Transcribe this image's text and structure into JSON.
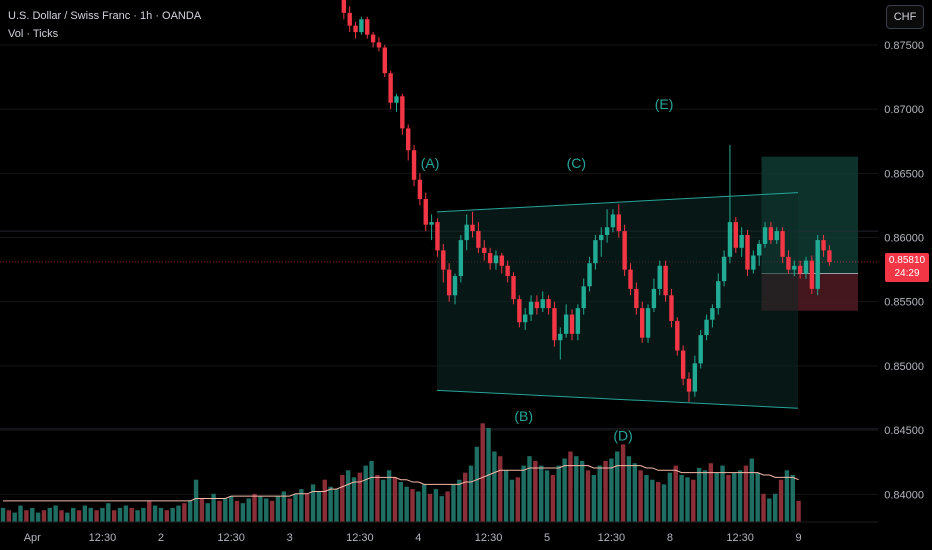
{
  "header": {
    "title": "U.S. Dollar / Swiss Franc · 1h · OANDA",
    "indicator": "Vol · Ticks"
  },
  "currency_button": "CHF",
  "price_tag": {
    "price": "0.85810",
    "countdown": "24:29"
  },
  "colors": {
    "up": "#22ab94",
    "down": "#f23645",
    "volume_up": "#1f6e63",
    "volume_down": "#8a2e38",
    "pattern": "#26a69a",
    "volume_ma": "#f5b8a8",
    "target_zone": "#0f3a33",
    "stop_zone": "#4a1a20"
  },
  "chart_data": {
    "type": "candlestick",
    "symbol": "U.S. Dollar / Swiss Franc",
    "timeframe": "1h",
    "y_ticks": [
      "0.87500",
      "0.87000",
      "0.86500",
      "0.86000",
      "0.85500",
      "0.85000",
      "0.84500",
      "0.84000"
    ],
    "x_ticks": [
      {
        "label": "Apr",
        "bar": 5
      },
      {
        "label": "12:30",
        "bar": 17
      },
      {
        "label": "2",
        "bar": 27
      },
      {
        "label": "12:30",
        "bar": 39
      },
      {
        "label": "3",
        "bar": 49
      },
      {
        "label": "12:30",
        "bar": 61
      },
      {
        "label": "4",
        "bar": 71
      },
      {
        "label": "12:30",
        "bar": 83
      },
      {
        "label": "5",
        "bar": 93
      },
      {
        "label": "12:30",
        "bar": 104
      },
      {
        "label": "8",
        "bar": 114
      },
      {
        "label": "12:30",
        "bar": 126
      },
      {
        "label": "9",
        "bar": 136
      }
    ],
    "ylim": [
      0.838,
      0.8785
    ],
    "candles": [
      [
        0.8795,
        0.88,
        0.8785,
        0.8788
      ],
      [
        0.8788,
        0.879,
        0.877,
        0.8775
      ],
      [
        0.8775,
        0.878,
        0.876,
        0.8765
      ],
      [
        0.8765,
        0.8768,
        0.8755,
        0.876
      ],
      [
        0.876,
        0.8772,
        0.8758,
        0.877
      ],
      [
        0.877,
        0.8772,
        0.8755,
        0.8758
      ],
      [
        0.8758,
        0.876,
        0.8748,
        0.8752
      ],
      [
        0.8752,
        0.8756,
        0.8745,
        0.8748
      ],
      [
        0.8748,
        0.875,
        0.8725,
        0.8728
      ],
      [
        0.8728,
        0.873,
        0.87,
        0.8705
      ],
      [
        0.8705,
        0.8712,
        0.8698,
        0.871
      ],
      [
        0.871,
        0.8712,
        0.868,
        0.8685
      ],
      [
        0.8685,
        0.8688,
        0.866,
        0.8668
      ],
      [
        0.8668,
        0.8672,
        0.864,
        0.8645
      ],
      [
        0.8645,
        0.865,
        0.8625,
        0.863
      ],
      [
        0.863,
        0.8635,
        0.8605,
        0.861
      ],
      [
        0.861,
        0.8618,
        0.8598,
        0.8612
      ],
      [
        0.8612,
        0.8615,
        0.8585,
        0.859
      ],
      [
        0.859,
        0.8595,
        0.8565,
        0.8575
      ],
      [
        0.8575,
        0.858,
        0.855,
        0.8555
      ],
      [
        0.8555,
        0.8572,
        0.8548,
        0.857
      ],
      [
        0.857,
        0.8602,
        0.8565,
        0.8598
      ],
      [
        0.8598,
        0.8618,
        0.859,
        0.861
      ],
      [
        0.861,
        0.862,
        0.86,
        0.8605
      ],
      [
        0.8605,
        0.8612,
        0.8588,
        0.8592
      ],
      [
        0.8592,
        0.8598,
        0.8582,
        0.8588
      ],
      [
        0.8588,
        0.8592,
        0.8575,
        0.858
      ],
      [
        0.858,
        0.859,
        0.8575,
        0.8586
      ],
      [
        0.8586,
        0.8588,
        0.8572,
        0.8578
      ],
      [
        0.8578,
        0.8582,
        0.8565,
        0.857
      ],
      [
        0.857,
        0.8573,
        0.8548,
        0.8552
      ],
      [
        0.8552,
        0.8555,
        0.853,
        0.8534
      ],
      [
        0.8534,
        0.8545,
        0.8528,
        0.854
      ],
      [
        0.854,
        0.8555,
        0.8535,
        0.855
      ],
      [
        0.855,
        0.8555,
        0.854,
        0.8545
      ],
      [
        0.8545,
        0.8558,
        0.8542,
        0.8552
      ],
      [
        0.8552,
        0.8555,
        0.854,
        0.8545
      ],
      [
        0.8545,
        0.855,
        0.8515,
        0.852
      ],
      [
        0.852,
        0.853,
        0.8505,
        0.8525
      ],
      [
        0.8525,
        0.8548,
        0.8522,
        0.854
      ],
      [
        0.854,
        0.8544,
        0.852,
        0.8525
      ],
      [
        0.8525,
        0.8548,
        0.852,
        0.8545
      ],
      [
        0.8545,
        0.8568,
        0.854,
        0.8562
      ],
      [
        0.8562,
        0.8585,
        0.8558,
        0.858
      ],
      [
        0.858,
        0.8602,
        0.8575,
        0.8598
      ],
      [
        0.8598,
        0.8608,
        0.8585,
        0.8602
      ],
      [
        0.8602,
        0.8622,
        0.8596,
        0.8608
      ],
      [
        0.8608,
        0.8622,
        0.8604,
        0.8618
      ],
      [
        0.8618,
        0.8626,
        0.86,
        0.8605
      ],
      [
        0.8605,
        0.861,
        0.857,
        0.8575
      ],
      [
        0.8575,
        0.858,
        0.8555,
        0.856
      ],
      [
        0.856,
        0.8565,
        0.854,
        0.8545
      ],
      [
        0.8545,
        0.855,
        0.8518,
        0.8522
      ],
      [
        0.8522,
        0.8548,
        0.8518,
        0.8545
      ],
      [
        0.8545,
        0.8568,
        0.8542,
        0.856
      ],
      [
        0.856,
        0.8582,
        0.8555,
        0.8578
      ],
      [
        0.8578,
        0.8582,
        0.855,
        0.8555
      ],
      [
        0.8555,
        0.856,
        0.853,
        0.8535
      ],
      [
        0.8535,
        0.8538,
        0.8508,
        0.8512
      ],
      [
        0.8512,
        0.8516,
        0.8485,
        0.849
      ],
      [
        0.849,
        0.8495,
        0.8472,
        0.848
      ],
      [
        0.848,
        0.8508,
        0.8476,
        0.8502
      ],
      [
        0.8502,
        0.8528,
        0.8498,
        0.8524
      ],
      [
        0.8524,
        0.854,
        0.852,
        0.8536
      ],
      [
        0.8536,
        0.8548,
        0.853,
        0.8545
      ],
      [
        0.8545,
        0.8572,
        0.854,
        0.8566
      ],
      [
        0.8566,
        0.859,
        0.8562,
        0.8585
      ],
      [
        0.8585,
        0.8672,
        0.858,
        0.8612
      ],
      [
        0.8612,
        0.8616,
        0.8588,
        0.8592
      ],
      [
        0.8592,
        0.8608,
        0.8585,
        0.8602
      ],
      [
        0.8602,
        0.8606,
        0.857,
        0.8575
      ],
      [
        0.8575,
        0.859,
        0.8572,
        0.8586
      ],
      [
        0.8586,
        0.8598,
        0.8578,
        0.8595
      ],
      [
        0.8595,
        0.8612,
        0.8592,
        0.8608
      ],
      [
        0.8608,
        0.8612,
        0.8595,
        0.8598
      ],
      [
        0.8598,
        0.8608,
        0.8595,
        0.8605
      ],
      [
        0.8605,
        0.8608,
        0.858,
        0.8585
      ],
      [
        0.8585,
        0.859,
        0.8572,
        0.8575
      ],
      [
        0.8575,
        0.8582,
        0.857,
        0.8578
      ],
      [
        0.8578,
        0.8582,
        0.8568,
        0.8572
      ],
      [
        0.8572,
        0.8585,
        0.8568,
        0.8582
      ],
      [
        0.8582,
        0.8586,
        0.8556,
        0.856
      ],
      [
        0.856,
        0.8602,
        0.8555,
        0.8598
      ],
      [
        0.8598,
        0.8602,
        0.8585,
        0.859
      ],
      [
        0.859,
        0.8594,
        0.8578,
        0.8581
      ]
    ],
    "candle_start_bar": 55,
    "volumes": [
      6,
      5,
      4,
      7,
      5,
      6,
      4,
      5,
      6,
      7,
      5,
      4,
      6,
      5,
      7,
      6,
      5,
      6,
      8,
      5,
      6,
      7,
      6,
      5,
      6,
      9,
      7,
      6,
      5,
      6,
      7,
      8,
      9,
      18,
      10,
      8,
      12,
      9,
      10,
      11,
      9,
      8,
      10,
      12,
      11,
      10,
      9,
      11,
      13,
      10,
      12,
      14,
      12,
      16,
      13,
      18,
      15,
      14,
      20,
      22,
      19,
      21,
      24,
      26,
      20,
      18,
      22,
      19,
      17,
      15,
      14,
      13,
      16,
      12,
      14,
      11,
      13,
      16,
      18,
      21,
      24,
      32,
      42,
      40,
      30,
      28,
      22,
      18,
      19,
      24,
      28,
      26,
      24,
      22,
      20,
      24,
      27,
      30,
      28,
      26,
      22,
      20,
      24,
      26,
      27,
      30,
      33,
      28,
      25,
      22,
      20,
      18,
      17,
      16,
      21,
      24,
      20,
      19,
      18,
      23,
      22,
      25,
      21,
      24,
      20,
      21,
      22,
      24,
      27,
      21,
      12,
      10,
      12,
      18,
      22,
      20,
      9
    ],
    "volume_ma": [
      9,
      9,
      9,
      9,
      9,
      9,
      9,
      9,
      9,
      9,
      9,
      9,
      9,
      9,
      9,
      9,
      9,
      9,
      9,
      9,
      9,
      9,
      9,
      9,
      9,
      9,
      9,
      9,
      9,
      9,
      9,
      9,
      9,
      10,
      10,
      10,
      10,
      10,
      10,
      11,
      11,
      11,
      11,
      11,
      11,
      11,
      11,
      11,
      11,
      11,
      12,
      12,
      12,
      13,
      13,
      13,
      14,
      14,
      15,
      16,
      17,
      17,
      18,
      19,
      19,
      19,
      19,
      19,
      18,
      18,
      17,
      17,
      16,
      16,
      16,
      16,
      16,
      16,
      16,
      17,
      17,
      18,
      19,
      20,
      21,
      22,
      22,
      22,
      22,
      22,
      23,
      23,
      23,
      23,
      23,
      23,
      24,
      24,
      24,
      24,
      24,
      23,
      23,
      23,
      23,
      24,
      24,
      24,
      24,
      24,
      23,
      23,
      22,
      22,
      22,
      22,
      21,
      21,
      21,
      21,
      21,
      21,
      21,
      21,
      21,
      21,
      21,
      21,
      21,
      21,
      20,
      20,
      19,
      19,
      19,
      19,
      18
    ],
    "annotations": [
      {
        "label": "(A)",
        "bar": 73,
        "price": 0.8654,
        "value_point": 0.8618
      },
      {
        "label": "(B)",
        "bar": 89,
        "price": 0.8457,
        "value_point": 0.8478
      },
      {
        "label": "(C)",
        "bar": 98,
        "price": 0.8654,
        "value_point": 0.8624
      },
      {
        "label": "(D)",
        "bar": 106,
        "price": 0.8442,
        "value_point": 0.8472
      },
      {
        "label": "(E)",
        "bar": 113,
        "price": 0.87,
        "value_point": 0.8672
      }
    ],
    "channel": {
      "upper": {
        "bar_start": 73,
        "price_start": 0.862,
        "bar_end": 133,
        "price_end": 0.8635
      },
      "lower": {
        "bar_start": 73,
        "price_start": 0.8481,
        "bar_end": 133,
        "price_end": 0.8467
      }
    },
    "position": {
      "bar_start": 130,
      "bar_end": 143,
      "target": 0.8663,
      "entry": 0.8572,
      "stop": 0.8543
    },
    "horizontal_lines": [
      0.8581,
      0.8451,
      0.8605
    ]
  }
}
